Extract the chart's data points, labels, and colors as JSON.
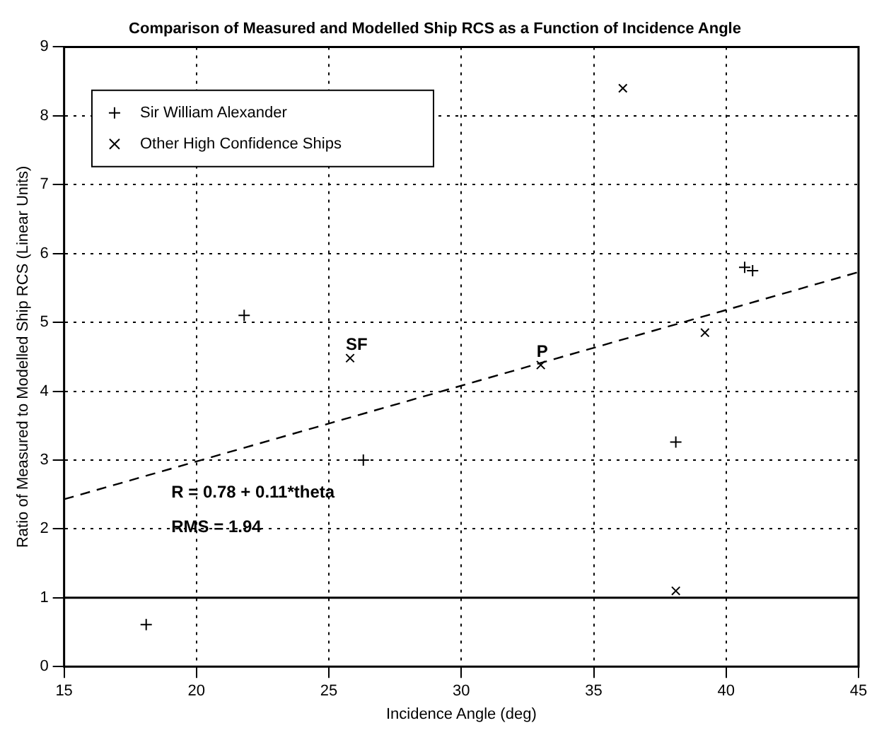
{
  "chart_data": {
    "type": "scatter",
    "title": "Comparison of Measured and Modelled Ship RCS as a Function of Incidence Angle",
    "xlabel": "Incidence Angle (deg)",
    "ylabel": "Ratio of Measured to Modelled Ship RCS (Linear Units)",
    "series": [
      {
        "name": "Sir William Alexander",
        "color": "#000000",
        "marker": "cross",
        "x": [
          18.1,
          21.8,
          26.3,
          38.1,
          40.7,
          41.0
        ],
        "values": [
          0.61,
          5.1,
          3.0,
          3.26,
          5.8,
          5.75
        ]
      },
      {
        "name": "Other High Confidence Ships",
        "color": "#000000",
        "marker": "x",
        "x": [
          25.8,
          33.0,
          36.1,
          38.1,
          39.2
        ],
        "values": [
          4.48,
          4.38,
          8.4,
          1.1,
          4.85
        ]
      },
      {
        "type": "line",
        "color": "#000000",
        "marker": "none",
        "line_style": "dashed",
        "x": [
          15,
          45
        ],
        "values": [
          2.43,
          5.73
        ]
      }
    ],
    "ref_lines": [
      {
        "axis": "y",
        "value": 1,
        "color": "#000000",
        "line_style": "solid"
      }
    ],
    "annotations": [
      {
        "text": "SF",
        "x": 25.8,
        "y": 4.48
      },
      {
        "text": "P",
        "x": 33.0,
        "y": 4.38
      },
      "R = 0.78 + 0.11*theta",
      "RMS = 1.94"
    ],
    "xlim": [
      15,
      45
    ],
    "xticks": [
      15,
      20,
      25,
      30,
      35,
      40,
      45
    ],
    "ylim": [
      0,
      9
    ],
    "yticks": [
      0,
      1,
      2,
      3,
      4,
      5,
      6,
      7,
      8,
      9
    ],
    "grid": true,
    "legend": "top left"
  }
}
